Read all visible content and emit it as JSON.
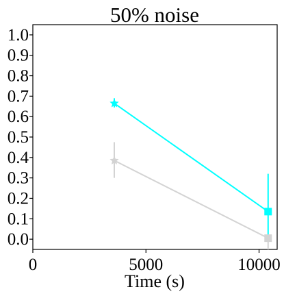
{
  "chart_data": {
    "type": "line",
    "title": "50% noise",
    "xlabel": "Time (s)",
    "ylabel": "",
    "xlim": [
      0,
      10800
    ],
    "ylim": [
      -0.05,
      1.05
    ],
    "xticks": [
      0,
      5000,
      10000
    ],
    "xtick_labels": [
      "0",
      "5000",
      "10000"
    ],
    "yticks": [
      0.0,
      0.1,
      0.2,
      0.3,
      0.4,
      0.5,
      0.6,
      0.7,
      0.8,
      0.9,
      1.0
    ],
    "ytick_labels": [
      "0.0",
      "0.1",
      "0.2",
      "0.3",
      "0.4",
      "0.5",
      "0.6",
      "0.7",
      "0.8",
      "0.9",
      "1.0"
    ],
    "grid": false,
    "legend": "none",
    "series": [
      {
        "color": "#00ffff",
        "x": [
          3600,
          10400
        ],
        "y": [
          0.665,
          0.135
        ],
        "err_low": [
          0.645,
          0.0
        ],
        "err_high": [
          0.69,
          0.32
        ],
        "markers": [
          "star",
          "square"
        ]
      },
      {
        "color": "#d3d3d3",
        "x": [
          3600,
          10400
        ],
        "y": [
          0.385,
          0.005
        ],
        "err_low": [
          0.3,
          -0.05
        ],
        "err_high": [
          0.475,
          0.005
        ],
        "markers": [
          "star",
          "square"
        ]
      }
    ]
  }
}
